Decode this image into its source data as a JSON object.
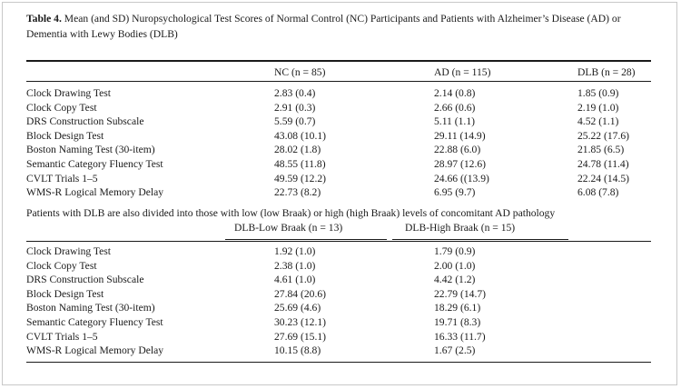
{
  "caption": {
    "label": "Table 4.",
    "text": " Mean (and SD) Nuropsychological Test Scores of Normal Control (NC) Participants and Patients with Alzheimer’s Disease (AD) or Dementia with Lewy Bodies (DLB)"
  },
  "table1": {
    "headers": [
      "NC (n = 85)",
      "AD (n = 115)",
      "DLB (n = 28)"
    ],
    "rows": [
      {
        "label": "Clock Drawing Test",
        "nc": "2.83 (0.4)",
        "ad": "2.14 (0.8)",
        "dlb": "1.85 (0.9)"
      },
      {
        "label": "Clock Copy Test",
        "nc": "2.91 (0.3)",
        "ad": "2.66 (0.6)",
        "dlb": "2.19 (1.0)"
      },
      {
        "label": "DRS Construction Subscale",
        "nc": "5.59 (0.7)",
        "ad": "5.11 (1.1)",
        "dlb": "4.52 (1.1)"
      },
      {
        "label": "Block Design Test",
        "nc": "43.08 (10.1)",
        "ad": "29.11 (14.9)",
        "dlb": "25.22 (17.6)"
      },
      {
        "label": "Boston Naming Test (30-item)",
        "nc": "28.02 (1.8)",
        "ad": "22.88 (6.0)",
        "dlb": "21.85 (6.5)"
      },
      {
        "label": "Semantic Category Fluency Test",
        "nc": "48.55 (11.8)",
        "ad": "28.97 (12.6)",
        "dlb": "24.78 (11.4)"
      },
      {
        "label": "CVLT Trials 1–5",
        "nc": "49.59 (12.2)",
        "ad": "24.66 ((13.9)",
        "dlb": "22.24 (14.5)"
      },
      {
        "label": "WMS-R Logical Memory Delay",
        "nc": "22.73 (8.2)",
        "ad": "6.95 (9.7)",
        "dlb": "6.08 (7.8)"
      }
    ]
  },
  "subtitle": "Patients with DLB are also divided into those with low (low Braak) or high (high Braak) levels of concomitant AD pathology",
  "table2": {
    "headers": [
      "DLB-Low Braak (n = 13)",
      "DLB-High Braak (n = 15)"
    ],
    "rows": [
      {
        "label": "Clock Drawing Test",
        "low": "1.92 (1.0)",
        "high": "1.79 (0.9)"
      },
      {
        "label": "Clock Copy Test",
        "low": "2.38 (1.0)",
        "high": "2.00 (1.0)"
      },
      {
        "label": "DRS Construction Subscale",
        "low": "4.61 (1.0)",
        "high": "4.42 (1.2)"
      },
      {
        "label": "Block Design Test",
        "low": "27.84 (20.6)",
        "high": "22.79 (14.7)"
      },
      {
        "label": "Boston Naming Test (30-item)",
        "low": "25.69 (4.6)",
        "high": "18.29 (6.1)"
      },
      {
        "label": "Semantic Category Fluency Test",
        "low": "30.23 (12.1)",
        "high": "19.71 (8.3)"
      },
      {
        "label": "CVLT Trials 1–5",
        "low": "27.69 (15.1)",
        "high": "16.33 (11.7)"
      },
      {
        "label": "WMS-R Logical Memory Delay",
        "low": "10.15 (8.8)",
        "high": "1.67 (2.5)"
      }
    ]
  }
}
